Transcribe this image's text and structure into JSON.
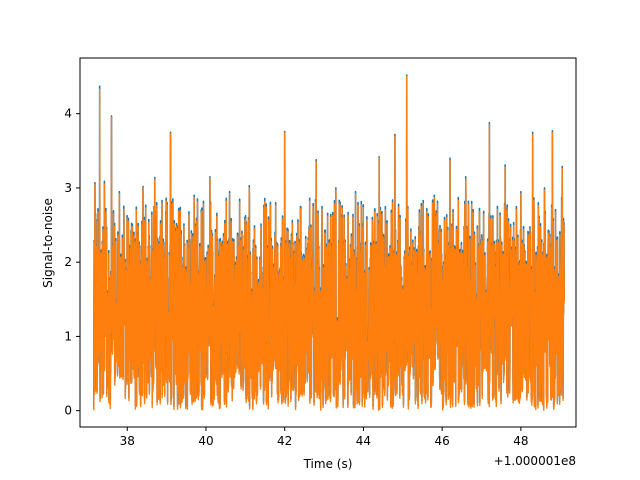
{
  "chart_data": {
    "type": "line",
    "xlabel": "Time (s)",
    "ylabel": "Signal-to-noise",
    "x_offset_label": "+1.000001e8",
    "xlim": [
      36.8,
      49.4
    ],
    "ylim": [
      -0.22,
      4.75
    ],
    "x_ticks": [
      38,
      40,
      42,
      44,
      46,
      48
    ],
    "x_tick_labels": [
      "38",
      "40",
      "42",
      "44",
      "46",
      "48"
    ],
    "y_ticks": [
      0,
      1,
      2,
      3,
      4
    ],
    "y_tick_labels": [
      "0",
      "1",
      "2",
      "3",
      "4"
    ],
    "grid": false,
    "x_range": [
      37.15,
      49.1
    ],
    "series": [
      {
        "color": "#1f77b4",
        "peaks": [
          {
            "x": 37.18,
            "y": 3.07
          },
          {
            "x": 37.3,
            "y": 4.37
          },
          {
            "x": 37.42,
            "y": 3.09
          },
          {
            "x": 37.6,
            "y": 3.97
          },
          {
            "x": 37.8,
            "y": 2.95
          },
          {
            "x": 38.4,
            "y": 3.02
          },
          {
            "x": 38.7,
            "y": 3.14
          },
          {
            "x": 39.1,
            "y": 3.75
          },
          {
            "x": 39.7,
            "y": 2.9
          },
          {
            "x": 40.1,
            "y": 3.15
          },
          {
            "x": 40.6,
            "y": 2.95
          },
          {
            "x": 41.1,
            "y": 3.03
          },
          {
            "x": 42.0,
            "y": 3.76
          },
          {
            "x": 42.4,
            "y": 2.75
          },
          {
            "x": 42.8,
            "y": 3.38
          },
          {
            "x": 43.3,
            "y": 3.0
          },
          {
            "x": 43.8,
            "y": 2.95
          },
          {
            "x": 44.4,
            "y": 3.42
          },
          {
            "x": 44.8,
            "y": 3.72
          },
          {
            "x": 45.1,
            "y": 4.52
          },
          {
            "x": 45.8,
            "y": 2.9
          },
          {
            "x": 46.2,
            "y": 3.4
          },
          {
            "x": 46.6,
            "y": 3.15
          },
          {
            "x": 47.2,
            "y": 3.88
          },
          {
            "x": 47.6,
            "y": 3.31
          },
          {
            "x": 48.0,
            "y": 2.95
          },
          {
            "x": 48.3,
            "y": 3.75
          },
          {
            "x": 48.6,
            "y": 3.0
          },
          {
            "x": 48.8,
            "y": 3.77
          },
          {
            "x": 49.05,
            "y": 3.29
          }
        ]
      },
      {
        "color": "#ff7f0e",
        "peaks": [
          {
            "x": 37.18,
            "y": 3.04
          },
          {
            "x": 37.3,
            "y": 4.33
          },
          {
            "x": 37.42,
            "y": 3.05
          },
          {
            "x": 37.6,
            "y": 3.95
          },
          {
            "x": 37.8,
            "y": 2.92
          },
          {
            "x": 38.4,
            "y": 3.0
          },
          {
            "x": 38.7,
            "y": 3.12
          },
          {
            "x": 39.1,
            "y": 3.73
          },
          {
            "x": 39.7,
            "y": 2.87
          },
          {
            "x": 40.1,
            "y": 3.13
          },
          {
            "x": 40.6,
            "y": 2.92
          },
          {
            "x": 41.1,
            "y": 3.0
          },
          {
            "x": 42.0,
            "y": 3.74
          },
          {
            "x": 42.4,
            "y": 2.72
          },
          {
            "x": 42.8,
            "y": 3.35
          },
          {
            "x": 43.3,
            "y": 2.97
          },
          {
            "x": 43.8,
            "y": 2.92
          },
          {
            "x": 44.4,
            "y": 3.4
          },
          {
            "x": 44.8,
            "y": 3.69
          },
          {
            "x": 45.1,
            "y": 4.5
          },
          {
            "x": 45.8,
            "y": 2.87
          },
          {
            "x": 46.2,
            "y": 3.37
          },
          {
            "x": 46.6,
            "y": 3.12
          },
          {
            "x": 47.2,
            "y": 3.85
          },
          {
            "x": 47.6,
            "y": 3.28
          },
          {
            "x": 48.0,
            "y": 2.92
          },
          {
            "x": 48.3,
            "y": 3.72
          },
          {
            "x": 48.6,
            "y": 2.97
          },
          {
            "x": 48.8,
            "y": 3.74
          },
          {
            "x": 49.05,
            "y": 3.26
          }
        ]
      }
    ]
  }
}
